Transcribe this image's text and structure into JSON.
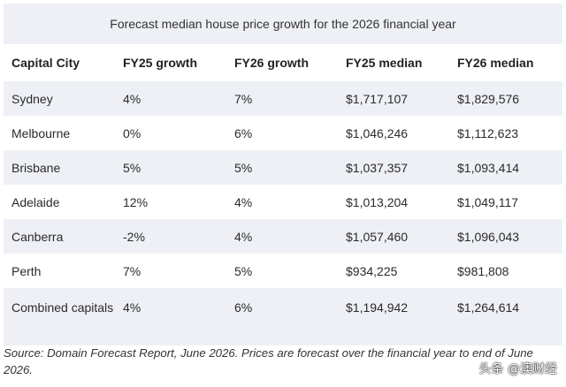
{
  "title": "Forecast median house price growth for the 2026 financial year",
  "columns": [
    "Capital City",
    "FY25 growth",
    "FY26 growth",
    "FY25 median",
    "FY26 median"
  ],
  "rows": [
    [
      "Sydney",
      "4%",
      "7%",
      "$1,717,107",
      "$1,829,576"
    ],
    [
      "Melbourne",
      "0%",
      "6%",
      "$1,046,246",
      "$1,112,623"
    ],
    [
      "Brisbane",
      "5%",
      "5%",
      "$1,037,357",
      "$1,093,414"
    ],
    [
      "Adelaide",
      "12%",
      "4%",
      "$1,013,204",
      "$1,049,117"
    ],
    [
      "Canberra",
      "-2%",
      "4%",
      "$1,057,460",
      "$1,096,043"
    ],
    [
      "Perth",
      "7%",
      "5%",
      "$934,225",
      "$981,808"
    ],
    [
      "Combined capitals",
      "4%",
      "6%",
      "$1,194,942",
      "$1,264,614"
    ]
  ],
  "source": "Source: Domain Forecast Report, June 2026. Prices are forecast over the financial year to end of June 2026.",
  "watermark": "头条 @澳财经",
  "colors": {
    "band": "#eef0f6",
    "text": "#222222"
  }
}
